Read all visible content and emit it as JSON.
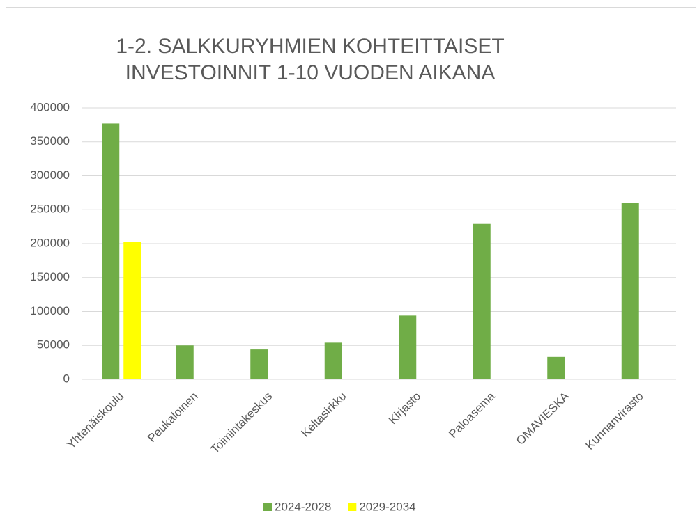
{
  "chart_data": {
    "type": "bar",
    "title": [
      "1-2. SALKKURYHMIEN KOHTEITTAISET",
      "INVESTOINNIT  1-10 VUODEN AIKANA"
    ],
    "categories": [
      "Yhtenäiskoulu",
      "Peukaloinen",
      "Toimintakeskus",
      "Keltasirkku",
      "Kirjasto",
      "Paloasema",
      "OMAVIESKA",
      "Kunnanvirasto"
    ],
    "series": [
      {
        "name": "2024-2028",
        "color": "#70ad47",
        "values": [
          377000,
          50000,
          44000,
          54000,
          94000,
          229000,
          33000,
          260000
        ]
      },
      {
        "name": "2029-2034",
        "color": "#ffff00",
        "values": [
          203000,
          null,
          null,
          null,
          null,
          null,
          null,
          null
        ]
      }
    ],
    "ylim": [
      0,
      400000
    ],
    "yticks": [
      0,
      50000,
      100000,
      150000,
      200000,
      250000,
      300000,
      350000,
      400000
    ],
    "grid": true,
    "legend": "bottom"
  }
}
